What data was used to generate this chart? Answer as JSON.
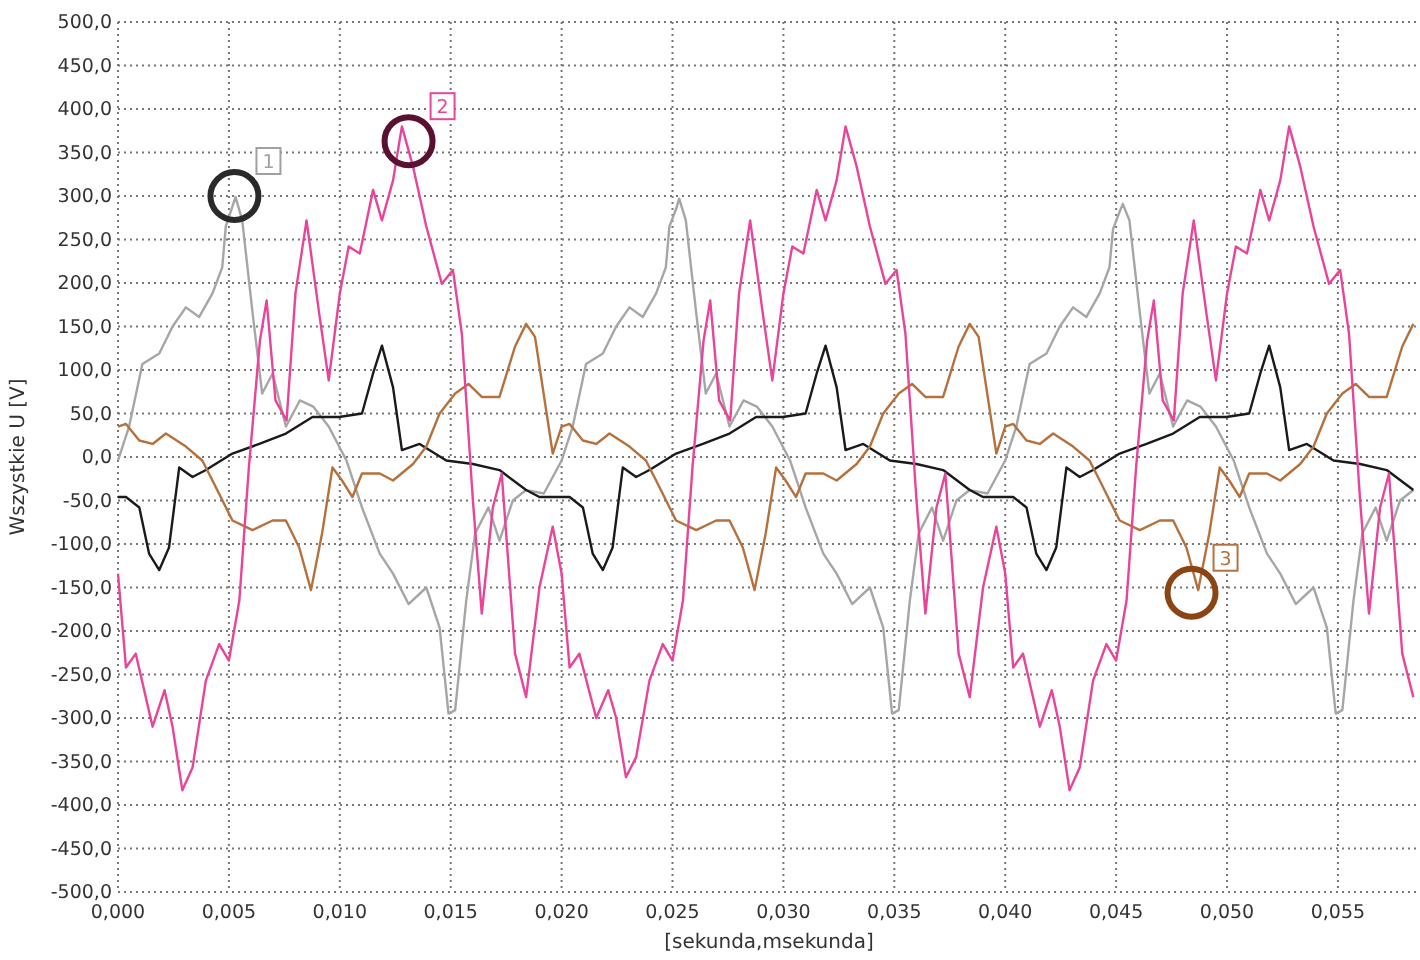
{
  "chart_data": {
    "type": "line",
    "xlabel": "[sekunda,msekunda]",
    "ylabel": "Wszystkie U [V]",
    "grid": true,
    "xlim": [
      0,
      0.0587
    ],
    "ylim": [
      -500,
      500
    ],
    "xticks": [
      {
        "value": 0,
        "label": "0,000"
      },
      {
        "value": 0.005,
        "label": "0,005"
      },
      {
        "value": 0.01,
        "label": "0,010"
      },
      {
        "value": 0.015,
        "label": "0,015"
      },
      {
        "value": 0.02,
        "label": "0,020"
      },
      {
        "value": 0.025,
        "label": "0,025"
      },
      {
        "value": 0.03,
        "label": "0,030"
      },
      {
        "value": 0.035,
        "label": "0,035"
      },
      {
        "value": 0.04,
        "label": "0,040"
      },
      {
        "value": 0.045,
        "label": "0,045"
      },
      {
        "value": 0.05,
        "label": "0,050"
      },
      {
        "value": 0.055,
        "label": "0,055"
      }
    ],
    "yticks": [
      {
        "value": -500,
        "label": "-500,0"
      },
      {
        "value": -450,
        "label": "-450,0"
      },
      {
        "value": -400,
        "label": "-400,0"
      },
      {
        "value": -350,
        "label": "-350,0"
      },
      {
        "value": -300,
        "label": "-300,0"
      },
      {
        "value": -250,
        "label": "-250,0"
      },
      {
        "value": -200,
        "label": "-200,0"
      },
      {
        "value": -150,
        "label": "-150,0"
      },
      {
        "value": -100,
        "label": "-100,0"
      },
      {
        "value": -50,
        "label": "-50,0"
      },
      {
        "value": 0,
        "label": "0,0"
      },
      {
        "value": 50,
        "label": "50,0"
      },
      {
        "value": 100,
        "label": "100,0"
      },
      {
        "value": 150,
        "label": "150,0"
      },
      {
        "value": 200,
        "label": "200,0"
      },
      {
        "value": 250,
        "label": "250,0"
      },
      {
        "value": 300,
        "label": "300,0"
      },
      {
        "value": 350,
        "label": "350,0"
      },
      {
        "value": 400,
        "label": "400,0"
      },
      {
        "value": 450,
        "label": "450,0"
      },
      {
        "value": 500,
        "label": "500,0"
      }
    ],
    "series": [
      {
        "color": "#a6a6a6",
        "x": [
          0,
          0.0005,
          0.0011,
          0.00186,
          0.00246,
          0.00306,
          0.00366,
          0.00426,
          0.0047,
          0.00486,
          0.00516,
          0.0053,
          0.0056,
          0.00607,
          0.0065,
          0.00697,
          0.00757,
          0.0082,
          0.0088,
          0.0095,
          0.0103,
          0.011,
          0.0118,
          0.0124,
          0.0131,
          0.0139,
          0.0145,
          0.0149,
          0.0152,
          0.0157,
          0.0161,
          0.0167,
          0.0172,
          0.0178,
          0.0184,
          0.0192,
          0.02,
          0.0205,
          0.0211,
          0.02186,
          0.02246,
          0.02306,
          0.02366,
          0.02426,
          0.0247,
          0.02486,
          0.02516,
          0.0253,
          0.0256,
          0.02607,
          0.0265,
          0.02697,
          0.02757,
          0.0282,
          0.0288,
          0.0295,
          0.0303,
          0.031,
          0.0318,
          0.0324,
          0.0331,
          0.0339,
          0.0345,
          0.0349,
          0.0352,
          0.0357,
          0.0361,
          0.0367,
          0.0372,
          0.0378,
          0.0384,
          0.0392,
          0.04,
          0.0405,
          0.0411,
          0.04186,
          0.04246,
          0.04306,
          0.04366,
          0.04426,
          0.0447,
          0.04486,
          0.04516,
          0.0453,
          0.0456,
          0.04607,
          0.0465,
          0.04697,
          0.04757,
          0.0482,
          0.0488,
          0.0495,
          0.0503,
          0.051,
          0.0518,
          0.0524,
          0.0531,
          0.0539,
          0.0545,
          0.0549,
          0.0552,
          0.0557,
          0.0561,
          0.0567,
          0.0572,
          0.0578,
          0.0584
        ],
        "values": [
          -4,
          35,
          107,
          119,
          150,
          172,
          161,
          188,
          218,
          265,
          288,
          299,
          272,
          165,
          73,
          96,
          35,
          65,
          58,
          35,
          -4,
          -58,
          -111,
          -134,
          -169,
          -150,
          -196,
          -295,
          -291,
          -165,
          -88,
          -58,
          -96,
          -50,
          -38,
          -42,
          -4,
          35,
          107,
          119,
          150,
          172,
          161,
          188,
          218,
          265,
          285,
          297,
          272,
          165,
          73,
          96,
          35,
          65,
          58,
          35,
          -4,
          -58,
          -111,
          -134,
          -169,
          -150,
          -196,
          -295,
          -291,
          -165,
          -88,
          -58,
          -96,
          -50,
          -38,
          -42,
          -4,
          35,
          107,
          119,
          150,
          172,
          161,
          188,
          218,
          262,
          282,
          291,
          272,
          165,
          73,
          96,
          35,
          65,
          58,
          35,
          -4,
          -58,
          -111,
          -134,
          -169,
          -150,
          -196,
          -295,
          -291,
          -165,
          -88,
          -58,
          -96,
          -50,
          -38
        ]
      },
      {
        "color": "#1a1a1a",
        "x": [
          0,
          0.00036,
          0.00096,
          0.0014,
          0.00186,
          0.0023,
          0.00276,
          0.00336,
          0.00396,
          0.00516,
          0.00637,
          0.00757,
          0.00877,
          0.00997,
          0.011,
          0.0115,
          0.0119,
          0.0124,
          0.0128,
          0.0136,
          0.0148,
          0.016,
          0.0172,
          0.0184,
          0.019,
          0.02,
          0.02036,
          0.02096,
          0.0214,
          0.02186,
          0.0223,
          0.02276,
          0.02336,
          0.02396,
          0.02516,
          0.02637,
          0.02757,
          0.02877,
          0.02997,
          0.031,
          0.0315,
          0.0319,
          0.0324,
          0.0328,
          0.0336,
          0.0348,
          0.036,
          0.0372,
          0.0384,
          0.039,
          0.04,
          0.04036,
          0.04096,
          0.0414,
          0.04186,
          0.0423,
          0.04276,
          0.04336,
          0.04396,
          0.04516,
          0.04637,
          0.04757,
          0.04877,
          0.04997,
          0.051,
          0.0515,
          0.0519,
          0.0524,
          0.0528,
          0.0536,
          0.0548,
          0.056,
          0.0572,
          0.0584
        ],
        "values": [
          -46,
          -46,
          -58,
          -111,
          -130,
          -104,
          -12,
          -23,
          -15,
          4,
          15,
          27,
          46,
          46,
          50,
          96,
          128,
          80,
          8,
          15,
          -4,
          -8,
          -15,
          -38,
          -46,
          -46,
          -46,
          -58,
          -111,
          -130,
          -104,
          -12,
          -23,
          -15,
          4,
          15,
          27,
          46,
          46,
          50,
          96,
          128,
          80,
          8,
          15,
          -4,
          -8,
          -15,
          -38,
          -46,
          -46,
          -46,
          -58,
          -111,
          -130,
          -104,
          -12,
          -23,
          -15,
          4,
          15,
          27,
          46,
          46,
          50,
          96,
          128,
          80,
          8,
          15,
          -4,
          -8,
          -15,
          -38
        ]
      },
      {
        "color": "#b5713d",
        "x": [
          0,
          0.00036,
          0.00096,
          0.00156,
          0.00216,
          0.00306,
          0.0038,
          0.00426,
          0.00516,
          0.00607,
          0.00697,
          0.00757,
          0.00817,
          0.0087,
          0.0092,
          0.00967,
          0.0101,
          0.01057,
          0.011,
          0.0118,
          0.0124,
          0.0133,
          0.0139,
          0.0145,
          0.0152,
          0.0158,
          0.0164,
          0.0172,
          0.0179,
          0.0184,
          0.0188,
          0.0196,
          0.02,
          0.02036,
          0.02096,
          0.02156,
          0.02216,
          0.02306,
          0.0238,
          0.02426,
          0.02516,
          0.02607,
          0.02697,
          0.02757,
          0.02817,
          0.0287,
          0.0292,
          0.02967,
          0.0301,
          0.03057,
          0.031,
          0.0318,
          0.0324,
          0.0333,
          0.0339,
          0.0345,
          0.0352,
          0.0358,
          0.0364,
          0.0372,
          0.0379,
          0.0384,
          0.0388,
          0.0396,
          0.04,
          0.04036,
          0.04096,
          0.04156,
          0.04216,
          0.04306,
          0.0438,
          0.04426,
          0.04516,
          0.04607,
          0.04697,
          0.04757,
          0.04817,
          0.0487,
          0.0492,
          0.04967,
          0.0501,
          0.05057,
          0.051,
          0.0518,
          0.0524,
          0.0533,
          0.0539,
          0.0545,
          0.0552,
          0.0558,
          0.0564,
          0.0572,
          0.0579,
          0.0584
        ],
        "values": [
          35,
          38,
          19,
          15,
          27,
          12,
          -4,
          -27,
          -73,
          -84,
          -73,
          -73,
          -104,
          -153,
          -88,
          -12,
          -27,
          -46,
          -19,
          -19,
          -27,
          -8,
          12,
          50,
          73,
          84,
          69,
          69,
          127,
          153,
          138,
          4,
          35,
          38,
          19,
          15,
          27,
          12,
          -4,
          -27,
          -73,
          -84,
          -73,
          -73,
          -104,
          -153,
          -88,
          -12,
          -27,
          -46,
          -19,
          -19,
          -27,
          -8,
          12,
          50,
          73,
          84,
          69,
          69,
          127,
          153,
          138,
          4,
          35,
          38,
          19,
          15,
          27,
          12,
          -4,
          -27,
          -73,
          -84,
          -73,
          -73,
          -104,
          -153,
          -88,
          -12,
          -27,
          -46,
          -19,
          -19,
          -27,
          -8,
          12,
          50,
          73,
          84,
          69,
          69,
          127,
          153
        ]
      },
      {
        "color": "#e8449a",
        "x": [
          0,
          0.00036,
          0.0008,
          0.00156,
          0.0021,
          0.00246,
          0.0029,
          0.00336,
          0.00396,
          0.00456,
          0.005,
          0.00547,
          0.0059,
          0.0064,
          0.0067,
          0.0071,
          0.0076,
          0.008,
          0.0085,
          0.00907,
          0.0095,
          0.01,
          0.0104,
          0.0109,
          0.0115,
          0.0119,
          0.0124,
          0.0128,
          0.0133,
          0.0139,
          0.0146,
          0.0151,
          0.0155,
          0.016,
          0.0164,
          0.0169,
          0.0173,
          0.0179,
          0.0184,
          0.019,
          0.0196,
          0.02,
          0.02036,
          0.0208,
          0.02156,
          0.0221,
          0.02246,
          0.0229,
          0.02336,
          0.02396,
          0.02456,
          0.025,
          0.02547,
          0.0259,
          0.0264,
          0.0267,
          0.0271,
          0.0276,
          0.028,
          0.0285,
          0.02907,
          0.0295,
          0.03,
          0.0304,
          0.0309,
          0.0315,
          0.0319,
          0.0324,
          0.0328,
          0.0333,
          0.0339,
          0.0346,
          0.0351,
          0.0355,
          0.036,
          0.0364,
          0.0369,
          0.0373,
          0.0379,
          0.0384,
          0.039,
          0.0396,
          0.04,
          0.04036,
          0.0408,
          0.04156,
          0.0421,
          0.04246,
          0.0429,
          0.04336,
          0.04396,
          0.04456,
          0.045,
          0.04547,
          0.0459,
          0.0464,
          0.0467,
          0.0471,
          0.0476,
          0.048,
          0.0485,
          0.04907,
          0.0495,
          0.05,
          0.0504,
          0.0509,
          0.0515,
          0.0519,
          0.0524,
          0.0528,
          0.0533,
          0.0539,
          0.0546,
          0.0551,
          0.0555,
          0.056,
          0.0564,
          0.0569,
          0.0573,
          0.0579,
          0.0584
        ],
        "values": [
          -134,
          -242,
          -226,
          -310,
          -268,
          -310,
          -383,
          -357,
          -257,
          -215,
          -234,
          -165,
          -12,
          134,
          180,
          65,
          42,
          188,
          272,
          165,
          88,
          188,
          242,
          234,
          307,
          272,
          318,
          380,
          334,
          265,
          199,
          215,
          142,
          -50,
          -180,
          -58,
          -19,
          -226,
          -276,
          -150,
          -80,
          -134,
          -242,
          -226,
          -300,
          -268,
          -300,
          -368,
          -345,
          -257,
          -215,
          -234,
          -165,
          -12,
          134,
          180,
          65,
          42,
          188,
          272,
          165,
          88,
          188,
          242,
          234,
          307,
          272,
          318,
          380,
          334,
          265,
          199,
          215,
          142,
          -50,
          -180,
          -58,
          -19,
          -226,
          -276,
          -150,
          -80,
          -134,
          -242,
          -226,
          -310,
          -268,
          -310,
          -383,
          -357,
          -257,
          -215,
          -234,
          -165,
          -12,
          134,
          180,
          65,
          42,
          188,
          272,
          165,
          88,
          188,
          242,
          234,
          307,
          272,
          318,
          380,
          334,
          265,
          199,
          215,
          142,
          -50,
          -180,
          -58,
          -19,
          -226,
          -276
        ]
      }
    ],
    "annotations": [
      {
        "text": "1",
        "x": 0.00525,
        "y": 300
      },
      {
        "text": "2",
        "x": 0.0131,
        "y": 363
      },
      {
        "text": "3",
        "x": 0.0484,
        "y": -156
      }
    ]
  }
}
